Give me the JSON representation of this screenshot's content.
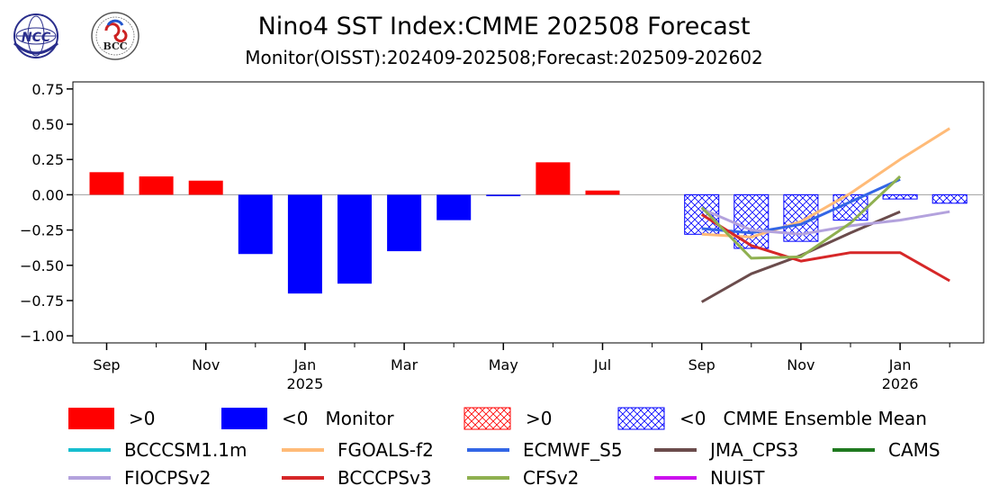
{
  "header": {
    "title": "Nino4 SST Index:CMME 202508 Forecast",
    "subtitle": "Monitor(OISST):202409-202508;Forecast:202509-202602"
  },
  "logos": {
    "left": "NCC",
    "right": "BCC"
  },
  "colors": {
    "positive": "#ff0000",
    "negative": "#0000ff",
    "zero_line": "#a0a0a0"
  },
  "chart_data": {
    "type": "bar",
    "ylim": [
      -1.05,
      0.8
    ],
    "yticks": [
      0.75,
      0.5,
      0.25,
      0.0,
      -0.25,
      -0.5,
      -0.75,
      -1.0
    ],
    "ytick_labels": [
      "0.75",
      "0.50",
      "0.25",
      "0.00",
      "−0.25",
      "−0.50",
      "−0.75",
      "−1.00"
    ],
    "x_major_ticks": [
      {
        "month": "2024-09",
        "label": "Sep",
        "year": ""
      },
      {
        "month": "2024-11",
        "label": "Nov",
        "year": ""
      },
      {
        "month": "2025-01",
        "label": "Jan",
        "year": "2025"
      },
      {
        "month": "2025-03",
        "label": "Mar",
        "year": ""
      },
      {
        "month": "2025-05",
        "label": "May",
        "year": ""
      },
      {
        "month": "2025-07",
        "label": "Jul",
        "year": ""
      },
      {
        "month": "2025-09",
        "label": "Sep",
        "year": ""
      },
      {
        "month": "2025-11",
        "label": "Nov",
        "year": ""
      },
      {
        "month": "2026-01",
        "label": "Jan",
        "year": "2026"
      }
    ],
    "monitor": {
      "months": [
        "2024-09",
        "2024-10",
        "2024-11",
        "2024-12",
        "2025-01",
        "2025-02",
        "2025-03",
        "2025-04",
        "2025-05",
        "2025-06",
        "2025-07",
        "2025-08"
      ],
      "values": [
        0.16,
        0.13,
        0.1,
        -0.42,
        -0.7,
        -0.63,
        -0.4,
        -0.18,
        -0.01,
        0.23,
        0.03,
        0.0
      ]
    },
    "ensemble_mean": {
      "months": [
        "2025-09",
        "2025-10",
        "2025-11",
        "2025-12",
        "2026-01",
        "2026-02"
      ],
      "values": [
        -0.28,
        -0.38,
        -0.33,
        -0.18,
        -0.03,
        -0.06
      ]
    },
    "models": [
      {
        "name": "BCCCSM1.1m",
        "color": "#17becf",
        "values": []
      },
      {
        "name": "FGOALS-f2",
        "color": "#ffbb78",
        "values": [
          -0.28,
          -0.3,
          -0.19,
          0.01,
          0.25,
          0.47
        ]
      },
      {
        "name": "ECMWF_S5",
        "color": "#3366e6",
        "values": [
          -0.24,
          -0.27,
          -0.21,
          -0.05,
          0.11
        ]
      },
      {
        "name": "JMA_CPS3",
        "color": "#6b4c4c",
        "values": [
          -0.76,
          -0.56,
          -0.43,
          -0.27,
          -0.12
        ]
      },
      {
        "name": "CAMS",
        "color": "#1f7a1f",
        "values": []
      },
      {
        "name": "FIOCPSv2",
        "color": "#b3a2dd",
        "values": [
          -0.1,
          -0.25,
          -0.28,
          -0.22,
          -0.18,
          -0.12
        ]
      },
      {
        "name": "BCCCPSv3",
        "color": "#d62728",
        "values": [
          -0.14,
          -0.36,
          -0.47,
          -0.41,
          -0.41,
          -0.61
        ]
      },
      {
        "name": "CFSv2",
        "color": "#8fb050",
        "values": [
          -0.09,
          -0.45,
          -0.44,
          -0.2,
          0.13
        ]
      },
      {
        "name": "NUIST",
        "color": "#cc11ee",
        "values": []
      }
    ],
    "legend": {
      "placement": "bottom",
      "row1": [
        {
          "kind": "solid",
          "sign": "pos",
          "label": ">0"
        },
        {
          "kind": "solid",
          "sign": "neg",
          "label": "<0   Monitor"
        },
        {
          "kind": "hatch",
          "sign": "pos",
          "label": ">0"
        },
        {
          "kind": "hatch",
          "sign": "neg",
          "label": "<0   CMME Ensemble Mean"
        }
      ]
    }
  }
}
